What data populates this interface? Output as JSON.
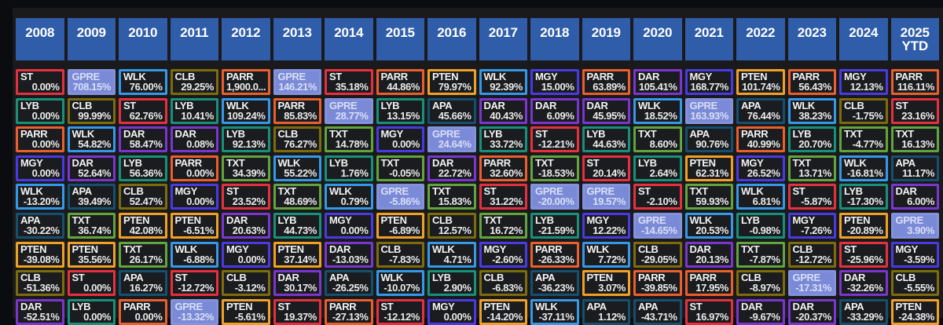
{
  "ticker_border_colors": {
    "ST": "#e5313f",
    "LYB": "#18917a",
    "PARR": "#ea5f2d",
    "MGY": "#4a3ae2",
    "WLK": "#3598e8",
    "APA": "#16506f",
    "PTEN": "#f0a125",
    "CLB": "#7d6c0d",
    "DAR": "#7a36cf",
    "TXT": "#62a43d",
    "GPRE": "#8492db"
  },
  "highlight": {
    "ticker": "GPRE",
    "fill": "#7b8ad7",
    "text_color": "#d9dff6"
  },
  "header_fill": "#2f5da9",
  "chart_data": {
    "type": "table",
    "description": "Annual total returns ranking grid: each column is a year, cells ranked best-to-worst top-to-bottom, showing ticker and return percent",
    "columns": [
      {
        "year": "2008",
        "cells": [
          {
            "ticker": "ST",
            "value": "0.00%"
          },
          {
            "ticker": "LYB",
            "value": "0.00%"
          },
          {
            "ticker": "PARR",
            "value": "0.00%"
          },
          {
            "ticker": "MGY",
            "value": "0.00%"
          },
          {
            "ticker": "WLK",
            "value": "-13.20%"
          },
          {
            "ticker": "APA",
            "value": "-30.22%"
          },
          {
            "ticker": "PTEN",
            "value": "-39.08%"
          },
          {
            "ticker": "CLB",
            "value": "-51.36%"
          },
          {
            "ticker": "DAR",
            "value": "-52.51%"
          }
        ]
      },
      {
        "year": "2009",
        "cells": [
          {
            "ticker": "GPRE",
            "value": "708.15%"
          },
          {
            "ticker": "CLB",
            "value": "99.99%"
          },
          {
            "ticker": "WLK",
            "value": "54.82%"
          },
          {
            "ticker": "DAR",
            "value": "52.64%"
          },
          {
            "ticker": "APA",
            "value": "39.49%"
          },
          {
            "ticker": "TXT",
            "value": "36.74%"
          },
          {
            "ticker": "PTEN",
            "value": "35.56%"
          },
          {
            "ticker": "ST",
            "value": "0.00%"
          },
          {
            "ticker": "LYB",
            "value": "0.00%"
          }
        ]
      },
      {
        "year": "2010",
        "cells": [
          {
            "ticker": "WLK",
            "value": "76.00%"
          },
          {
            "ticker": "ST",
            "value": "62.76%"
          },
          {
            "ticker": "DAR",
            "value": "58.47%"
          },
          {
            "ticker": "LYB",
            "value": "56.36%"
          },
          {
            "ticker": "CLB",
            "value": "52.47%"
          },
          {
            "ticker": "PTEN",
            "value": "42.08%"
          },
          {
            "ticker": "TXT",
            "value": "26.17%"
          },
          {
            "ticker": "APA",
            "value": "16.27%"
          },
          {
            "ticker": "PARR",
            "value": "0.00%"
          }
        ]
      },
      {
        "year": "2011",
        "cells": [
          {
            "ticker": "CLB",
            "value": "29.25%"
          },
          {
            "ticker": "LYB",
            "value": "10.41%"
          },
          {
            "ticker": "DAR",
            "value": "0.08%"
          },
          {
            "ticker": "PARR",
            "value": "0.00%"
          },
          {
            "ticker": "MGY",
            "value": "0.00%"
          },
          {
            "ticker": "PTEN",
            "value": "-6.51%"
          },
          {
            "ticker": "WLK",
            "value": "-6.88%"
          },
          {
            "ticker": "ST",
            "value": "-12.72%"
          },
          {
            "ticker": "GPRE",
            "value": "-13.32%"
          }
        ]
      },
      {
        "year": "2012",
        "cells": [
          {
            "ticker": "PARR",
            "value": "1,900.0..."
          },
          {
            "ticker": "WLK",
            "value": "109.24%"
          },
          {
            "ticker": "LYB",
            "value": "92.13%"
          },
          {
            "ticker": "TXT",
            "value": "34.39%"
          },
          {
            "ticker": "ST",
            "value": "23.52%"
          },
          {
            "ticker": "DAR",
            "value": "20.63%"
          },
          {
            "ticker": "MGY",
            "value": "0.00%"
          },
          {
            "ticker": "CLB",
            "value": "-3.12%"
          },
          {
            "ticker": "PTEN",
            "value": "-5.61%"
          }
        ]
      },
      {
        "year": "2013",
        "cells": [
          {
            "ticker": "GPRE",
            "value": "146.21%"
          },
          {
            "ticker": "PARR",
            "value": "85.83%"
          },
          {
            "ticker": "CLB",
            "value": "76.27%"
          },
          {
            "ticker": "WLK",
            "value": "55.22%"
          },
          {
            "ticker": "TXT",
            "value": "48.69%"
          },
          {
            "ticker": "LYB",
            "value": "44.73%"
          },
          {
            "ticker": "PTEN",
            "value": "37.14%"
          },
          {
            "ticker": "DAR",
            "value": "30.17%"
          },
          {
            "ticker": "ST",
            "value": "19.37%"
          }
        ]
      },
      {
        "year": "2014",
        "cells": [
          {
            "ticker": "ST",
            "value": "35.18%"
          },
          {
            "ticker": "GPRE",
            "value": "28.77%"
          },
          {
            "ticker": "TXT",
            "value": "14.78%"
          },
          {
            "ticker": "LYB",
            "value": "1.76%"
          },
          {
            "ticker": "WLK",
            "value": "0.79%"
          },
          {
            "ticker": "MGY",
            "value": "0.00%"
          },
          {
            "ticker": "DAR",
            "value": "-13.03%"
          },
          {
            "ticker": "APA",
            "value": "-26.25%"
          },
          {
            "ticker": "PARR",
            "value": "-27.13%"
          }
        ]
      },
      {
        "year": "2015",
        "cells": [
          {
            "ticker": "PARR",
            "value": "44.86%"
          },
          {
            "ticker": "LYB",
            "value": "13.15%"
          },
          {
            "ticker": "MGY",
            "value": "0.00%"
          },
          {
            "ticker": "TXT",
            "value": "-0.05%"
          },
          {
            "ticker": "GPRE",
            "value": "-5.86%"
          },
          {
            "ticker": "PTEN",
            "value": "-6.89%"
          },
          {
            "ticker": "CLB",
            "value": "-7.83%"
          },
          {
            "ticker": "WLK",
            "value": "-10.07%"
          },
          {
            "ticker": "ST",
            "value": "-12.12%"
          }
        ]
      },
      {
        "year": "2016",
        "cells": [
          {
            "ticker": "PTEN",
            "value": "79.97%"
          },
          {
            "ticker": "APA",
            "value": "45.66%"
          },
          {
            "ticker": "GPRE",
            "value": "24.64%"
          },
          {
            "ticker": "DAR",
            "value": "22.72%"
          },
          {
            "ticker": "TXT",
            "value": "15.83%"
          },
          {
            "ticker": "CLB",
            "value": "12.57%"
          },
          {
            "ticker": "WLK",
            "value": "4.71%"
          },
          {
            "ticker": "LYB",
            "value": "2.90%"
          },
          {
            "ticker": "MGY",
            "value": "0.00%"
          }
        ]
      },
      {
        "year": "2017",
        "cells": [
          {
            "ticker": "WLK",
            "value": "92.39%"
          },
          {
            "ticker": "DAR",
            "value": "40.43%"
          },
          {
            "ticker": "LYB",
            "value": "33.72%"
          },
          {
            "ticker": "PARR",
            "value": "32.60%"
          },
          {
            "ticker": "ST",
            "value": "31.22%"
          },
          {
            "ticker": "TXT",
            "value": "16.72%"
          },
          {
            "ticker": "MGY",
            "value": "-2.60%"
          },
          {
            "ticker": "CLB",
            "value": "-6.83%"
          },
          {
            "ticker": "PTEN",
            "value": "-14.20%"
          }
        ]
      },
      {
        "year": "2018",
        "cells": [
          {
            "ticker": "MGY",
            "value": "15.00%"
          },
          {
            "ticker": "DAR",
            "value": "6.09%"
          },
          {
            "ticker": "ST",
            "value": "-12.21%"
          },
          {
            "ticker": "TXT",
            "value": "-18.53%"
          },
          {
            "ticker": "GPRE",
            "value": "-20.00%"
          },
          {
            "ticker": "LYB",
            "value": "-21.59%"
          },
          {
            "ticker": "PARR",
            "value": "-26.33%"
          },
          {
            "ticker": "APA",
            "value": "-36.23%"
          },
          {
            "ticker": "WLK",
            "value": "-37.11%"
          }
        ]
      },
      {
        "year": "2019",
        "cells": [
          {
            "ticker": "PARR",
            "value": "63.89%"
          },
          {
            "ticker": "DAR",
            "value": "45.95%"
          },
          {
            "ticker": "LYB",
            "value": "44.63%"
          },
          {
            "ticker": "ST",
            "value": "20.14%"
          },
          {
            "ticker": "GPRE",
            "value": "19.57%"
          },
          {
            "ticker": "MGY",
            "value": "12.22%"
          },
          {
            "ticker": "WLK",
            "value": "7.72%"
          },
          {
            "ticker": "PTEN",
            "value": "3.07%"
          },
          {
            "ticker": "APA",
            "value": "1.12%"
          }
        ]
      },
      {
        "year": "2020",
        "cells": [
          {
            "ticker": "DAR",
            "value": "105.41%"
          },
          {
            "ticker": "WLK",
            "value": "18.52%"
          },
          {
            "ticker": "TXT",
            "value": "8.60%"
          },
          {
            "ticker": "LYB",
            "value": "2.64%"
          },
          {
            "ticker": "ST",
            "value": "-2.10%"
          },
          {
            "ticker": "GPRE",
            "value": "-14.65%"
          },
          {
            "ticker": "CLB",
            "value": "-29.05%"
          },
          {
            "ticker": "PARR",
            "value": "-39.85%"
          },
          {
            "ticker": "APA",
            "value": "-43.71%"
          }
        ]
      },
      {
        "year": "2021",
        "cells": [
          {
            "ticker": "MGY",
            "value": "168.77%"
          },
          {
            "ticker": "GPRE",
            "value": "163.93%"
          },
          {
            "ticker": "APA",
            "value": "90.76%"
          },
          {
            "ticker": "PTEN",
            "value": "62.31%"
          },
          {
            "ticker": "TXT",
            "value": "59.93%"
          },
          {
            "ticker": "WLK",
            "value": "20.53%"
          },
          {
            "ticker": "DAR",
            "value": "20.13%"
          },
          {
            "ticker": "PARR",
            "value": "17.95%"
          },
          {
            "ticker": "ST",
            "value": "16.97%"
          }
        ]
      },
      {
        "year": "2022",
        "cells": [
          {
            "ticker": "PTEN",
            "value": "101.74%"
          },
          {
            "ticker": "APA",
            "value": "76.44%"
          },
          {
            "ticker": "PARR",
            "value": "40.99%"
          },
          {
            "ticker": "MGY",
            "value": "26.52%"
          },
          {
            "ticker": "WLK",
            "value": "6.81%"
          },
          {
            "ticker": "LYB",
            "value": "-0.98%"
          },
          {
            "ticker": "TXT",
            "value": "-7.87%"
          },
          {
            "ticker": "CLB",
            "value": "-8.97%"
          },
          {
            "ticker": "DAR",
            "value": "-9.67%"
          }
        ]
      },
      {
        "year": "2023",
        "cells": [
          {
            "ticker": "PARR",
            "value": "56.43%"
          },
          {
            "ticker": "WLK",
            "value": "38.23%"
          },
          {
            "ticker": "LYB",
            "value": "20.70%"
          },
          {
            "ticker": "TXT",
            "value": "13.71%"
          },
          {
            "ticker": "ST",
            "value": "-5.87%"
          },
          {
            "ticker": "MGY",
            "value": "-7.26%"
          },
          {
            "ticker": "CLB",
            "value": "-12.72%"
          },
          {
            "ticker": "GPRE",
            "value": "-17.31%"
          },
          {
            "ticker": "DAR",
            "value": "-20.37%"
          }
        ]
      },
      {
        "year": "2024",
        "cells": [
          {
            "ticker": "MGY",
            "value": "12.13%"
          },
          {
            "ticker": "CLB",
            "value": "-1.75%"
          },
          {
            "ticker": "TXT",
            "value": "-4.77%"
          },
          {
            "ticker": "WLK",
            "value": "-16.81%"
          },
          {
            "ticker": "LYB",
            "value": "-17.30%"
          },
          {
            "ticker": "PTEN",
            "value": "-20.89%"
          },
          {
            "ticker": "ST",
            "value": "-25.96%"
          },
          {
            "ticker": "DAR",
            "value": "-32.26%"
          },
          {
            "ticker": "APA",
            "value": "-33.29%"
          }
        ]
      },
      {
        "year": "2025 YTD",
        "cells": [
          {
            "ticker": "PARR",
            "value": "116.11%"
          },
          {
            "ticker": "ST",
            "value": "23.16%"
          },
          {
            "ticker": "TXT",
            "value": "16.13%"
          },
          {
            "ticker": "APA",
            "value": "11.17%"
          },
          {
            "ticker": "DAR",
            "value": "6.00%"
          },
          {
            "ticker": "GPRE",
            "value": "3.90%"
          },
          {
            "ticker": "MGY",
            "value": "-3.59%"
          },
          {
            "ticker": "CLB",
            "value": "-5.55%"
          },
          {
            "ticker": "PTEN",
            "value": "-24.38%"
          }
        ]
      }
    ]
  }
}
